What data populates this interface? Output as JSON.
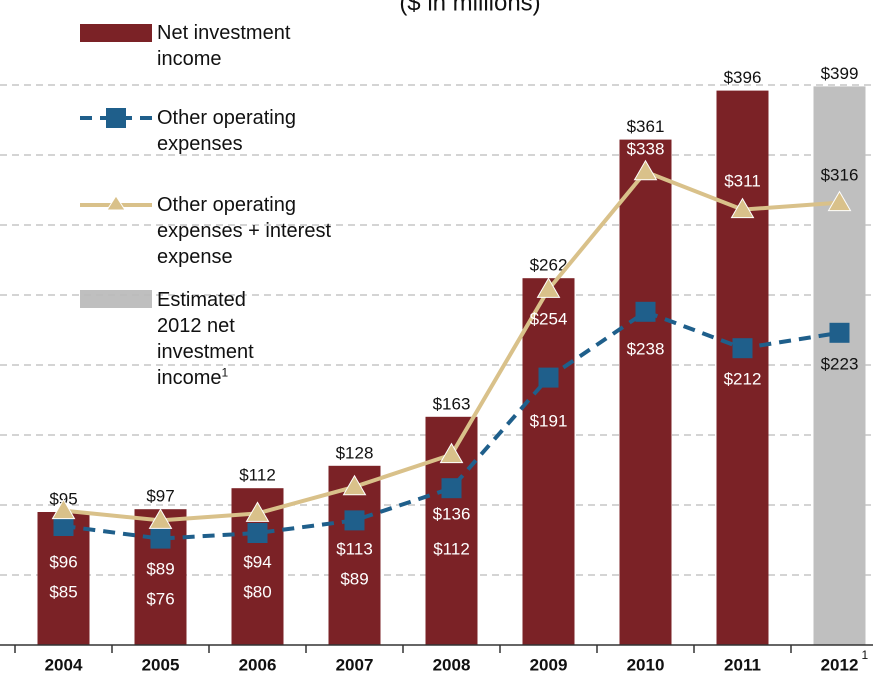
{
  "chart_data": {
    "type": "bar",
    "title": "($ in millions)",
    "footnote_mark": "1",
    "categories": [
      "2004",
      "2005",
      "2006",
      "2007",
      "2008",
      "2009",
      "2010",
      "2011",
      "2012"
    ],
    "ylim": [
      0,
      450
    ],
    "yticks": [
      0,
      50,
      100,
      150,
      200,
      250,
      300,
      350,
      400
    ],
    "grid": true,
    "series": [
      {
        "name": "Net investment income",
        "type": "bar",
        "color": "#7b2226",
        "values": [
          95,
          97,
          112,
          128,
          163,
          262,
          361,
          396,
          null
        ],
        "value_labels": [
          "$95",
          "$97",
          "$112",
          "$128",
          "$163",
          "$262",
          "$361",
          "$396",
          null
        ]
      },
      {
        "name": "Other operating expenses",
        "type": "line",
        "marker": "square",
        "dashed": true,
        "color": "#1f5f8b",
        "values": [
          85,
          76,
          80,
          89,
          112,
          191,
          238,
          212,
          223
        ],
        "value_labels": [
          "$85",
          "$76",
          "$80",
          "$89",
          "$112",
          "$191",
          "$238",
          "$212",
          "$223"
        ]
      },
      {
        "name": "Other operating expenses + interest expense",
        "type": "line",
        "marker": "triangle",
        "dashed": false,
        "color": "#d9c18a",
        "values": [
          96,
          89,
          94,
          113,
          136,
          254,
          338,
          311,
          316
        ],
        "value_labels": [
          "$96",
          "$89",
          "$94",
          "$113",
          "$136",
          "$254",
          "$338",
          "$311",
          "$316"
        ]
      },
      {
        "name": "Estimated 2012 net investment income",
        "type": "bar",
        "color": "#bfbfbf",
        "values": [
          null,
          null,
          null,
          null,
          null,
          null,
          null,
          null,
          399
        ],
        "value_labels": [
          null,
          null,
          null,
          null,
          null,
          null,
          null,
          null,
          "$399"
        ]
      }
    ]
  }
}
